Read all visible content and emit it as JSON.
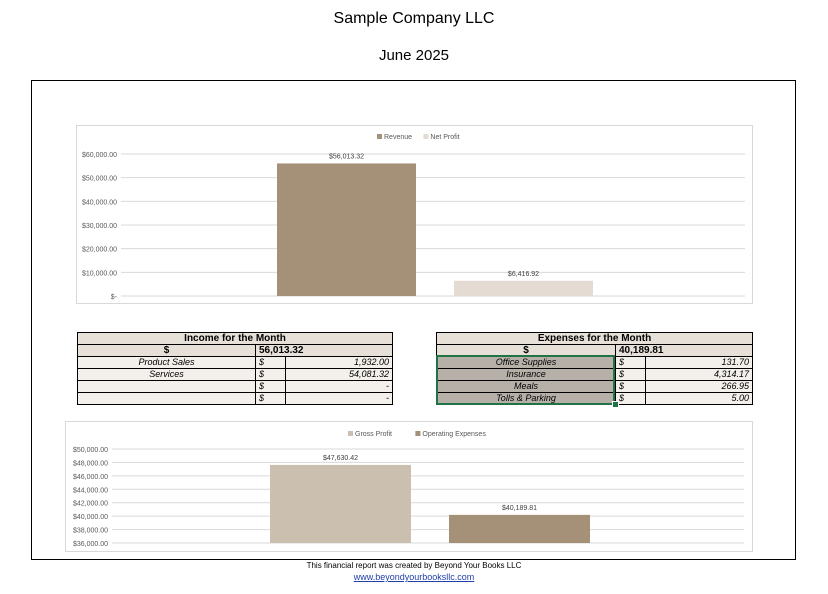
{
  "header": {
    "company": "Sample Company LLC",
    "period": "June 2025"
  },
  "chart_data": [
    {
      "type": "bar",
      "categories": [
        ""
      ],
      "series": [
        {
          "name": "Revenue",
          "values": [
            56013.32
          ],
          "color": "#a59078",
          "label": "$56,013.32"
        },
        {
          "name": "Net Profit",
          "values": [
            6416.92
          ],
          "color": "#e4dcd3",
          "label": "$6,416.92"
        }
      ],
      "ylim": [
        0,
        60000
      ],
      "yticks": [
        0,
        10000,
        20000,
        30000,
        40000,
        50000,
        60000
      ],
      "ytick_labels": [
        "$-",
        "$10,000.00",
        "$20,000.00",
        "$30,000.00",
        "$40,000.00",
        "$50,000.00",
        "$60,000.00"
      ],
      "grid": true,
      "legend": "top-center"
    },
    {
      "type": "bar",
      "categories": [
        ""
      ],
      "series": [
        {
          "name": "Gross Profit",
          "values": [
            47630.42
          ],
          "color": "#cbbfaf",
          "label": "$47,630.42"
        },
        {
          "name": "Operating Expenses",
          "values": [
            40189.81
          ],
          "color": "#a59078",
          "label": "$40,189.81"
        }
      ],
      "ylim": [
        36000,
        50000
      ],
      "yticks": [
        36000,
        38000,
        40000,
        42000,
        44000,
        46000,
        48000,
        50000
      ],
      "ytick_labels": [
        "$36,000.00",
        "$38,000.00",
        "$40,000.00",
        "$42,000.00",
        "$44,000.00",
        "$46,000.00",
        "$48,000.00",
        "$50,000.00"
      ],
      "grid": true,
      "legend": "top-center"
    }
  ],
  "income": {
    "title": "Income for the Month",
    "currency": "$",
    "total": "56,013.32",
    "rows": [
      {
        "label": "Product Sales",
        "cur": "$",
        "amount": "1,932.00"
      },
      {
        "label": "Services",
        "cur": "$",
        "amount": "54,081.32"
      },
      {
        "label": "",
        "cur": "$",
        "amount": "-"
      },
      {
        "label": "",
        "cur": "$",
        "amount": "-"
      }
    ]
  },
  "expenses": {
    "title": "Expenses for the Month",
    "currency": "$",
    "total": "40,189.81",
    "rows": [
      {
        "label": "Office Supplies",
        "cur": "$",
        "amount": "131.70"
      },
      {
        "label": "Insurance",
        "cur": "$",
        "amount": "4,314.17"
      },
      {
        "label": "Meals",
        "cur": "$",
        "amount": "266.95"
      },
      {
        "label": "Tolls & Parking",
        "cur": "$",
        "amount": "5.00"
      }
    ]
  },
  "footer": {
    "text": "This financial report was created by Beyond Your Books LLC",
    "link": "www.beyondyourbooksllc.com"
  }
}
